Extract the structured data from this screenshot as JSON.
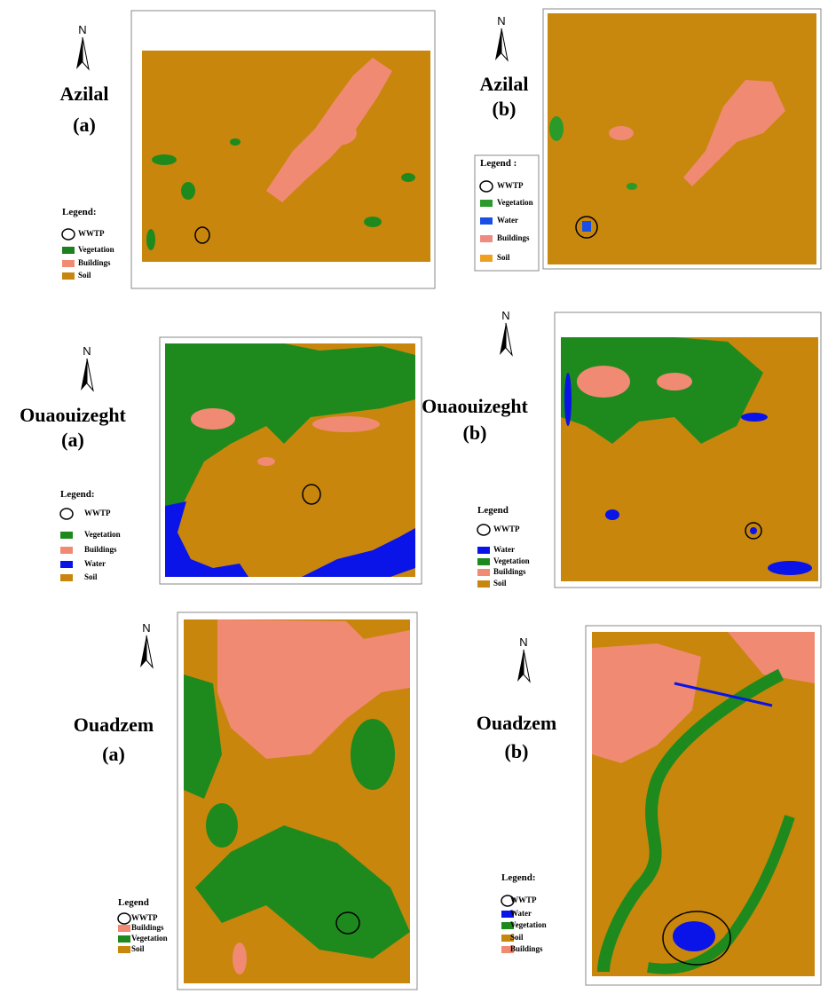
{
  "panels": [
    {
      "place": "Azilal",
      "sub": "(a)",
      "north": "N",
      "legend_title": "Legend:",
      "legend": [
        {
          "label": "WWTP"
        },
        {
          "label": "Vegetation",
          "color": "#1e7f1e"
        },
        {
          "label": "Buildings",
          "color": "#f08a72"
        },
        {
          "label": "Soil",
          "color": "#c8860c"
        }
      ]
    },
    {
      "place": "Azilal",
      "sub": "(b)",
      "north": "N",
      "legend_title": "Legend :",
      "legend": [
        {
          "label": "WWTP"
        },
        {
          "label": "Vegetation",
          "color": "#2a9a2a"
        },
        {
          "label": "Water",
          "color": "#1a4fe6"
        },
        {
          "label": "Buildings",
          "color": "#f08a80"
        },
        {
          "label": "Soil",
          "color": "#f0a020"
        }
      ]
    },
    {
      "place": "Ouaouizeght",
      "sub": "(a)",
      "north": "N",
      "legend_title": "Legend:",
      "legend": [
        {
          "label": "WWTP"
        },
        {
          "label": "Vegetation",
          "color": "#1e8a1e"
        },
        {
          "label": "Buildings",
          "color": "#f08a72"
        },
        {
          "label": "Water",
          "color": "#0a14e8"
        },
        {
          "label": "Soil",
          "color": "#c8860c"
        }
      ]
    },
    {
      "place": "Ouaouizeght",
      "sub": "(b)",
      "north": "N",
      "legend_title": "Legend",
      "legend": [
        {
          "label": "WWTP"
        },
        {
          "label": "Water",
          "color": "#0a14e8"
        },
        {
          "label": "Vegetation",
          "color": "#1e8a1e"
        },
        {
          "label": "Buildings",
          "color": "#f08a72"
        },
        {
          "label": "Soil",
          "color": "#c8860c"
        }
      ]
    },
    {
      "place": "Ouadzem",
      "sub": "(a)",
      "north": "N",
      "legend_title": "Legend",
      "legend": [
        {
          "label": "WWTP"
        },
        {
          "label": "Buildings",
          "color": "#f08a72"
        },
        {
          "label": "Vegetation",
          "color": "#1e8a1e"
        },
        {
          "label": "Soil",
          "color": "#c8860c"
        }
      ]
    },
    {
      "place": "Ouadzem",
      "sub": "(b)",
      "north": "N",
      "legend_title": "Legend:",
      "legend": [
        {
          "label": "WWTP"
        },
        {
          "label": "Water",
          "color": "#0a14e8"
        },
        {
          "label": "Vegetation",
          "color": "#1e8a1e"
        },
        {
          "label": "Soil",
          "color": "#c8860c"
        },
        {
          "label": "Buildings",
          "color": "#f08a72"
        }
      ]
    }
  ]
}
